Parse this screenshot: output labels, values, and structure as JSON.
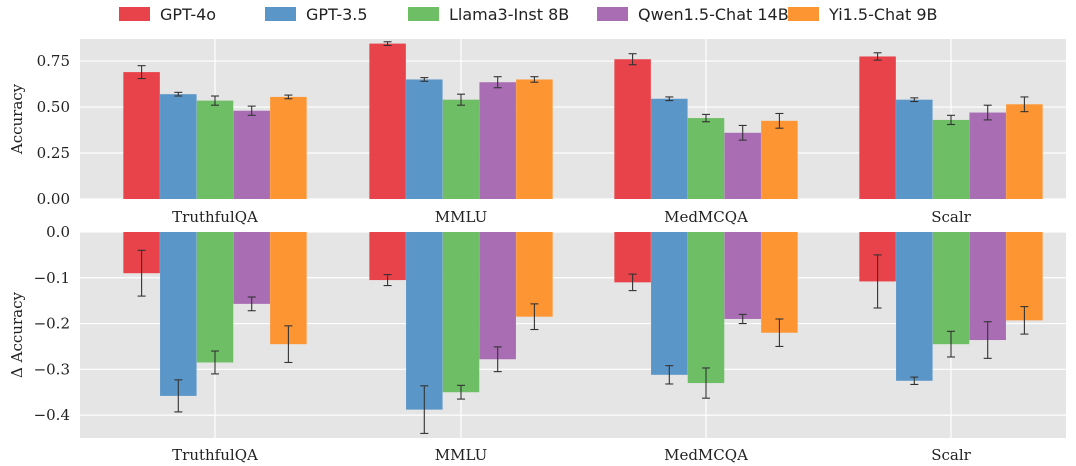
{
  "legend": [
    "GPT-4o",
    "GPT-3.5",
    "Llama3-Inst 8B",
    "Qwen1.5-Chat 14B",
    "Yi1.5-Chat 9B"
  ],
  "colors": [
    "#e8434a",
    "#5b96c8",
    "#6dbe64",
    "#a96db4",
    "#fd9532"
  ],
  "chart_data": [
    {
      "type": "bar",
      "categories": [
        "TruthfulQA",
        "MMLU",
        "MedMCQA",
        "Scalr"
      ],
      "ylabel": "Accuracy",
      "ylim": [
        0,
        0.87
      ],
      "yticks": [
        "0.00",
        "0.25",
        "0.50",
        "0.75"
      ],
      "grid": true,
      "legend_position": "top",
      "series": [
        {
          "name": "GPT-4o",
          "values": [
            0.69,
            0.845,
            0.76,
            0.775
          ],
          "errors": [
            0.035,
            0.01,
            0.03,
            0.02
          ]
        },
        {
          "name": "GPT-3.5",
          "values": [
            0.57,
            0.65,
            0.545,
            0.54
          ],
          "errors": [
            0.01,
            0.01,
            0.01,
            0.01
          ]
        },
        {
          "name": "Llama3-Inst 8B",
          "values": [
            0.535,
            0.54,
            0.44,
            0.43
          ],
          "errors": [
            0.025,
            0.03,
            0.02,
            0.025
          ]
        },
        {
          "name": "Qwen1.5-Chat 14B",
          "values": [
            0.48,
            0.635,
            0.36,
            0.47
          ],
          "errors": [
            0.025,
            0.03,
            0.04,
            0.04
          ]
        },
        {
          "name": "Yi1.5-Chat 9B",
          "values": [
            0.555,
            0.65,
            0.425,
            0.515
          ],
          "errors": [
            0.01,
            0.015,
            0.04,
            0.04
          ]
        }
      ]
    },
    {
      "type": "bar",
      "categories": [
        "TruthfulQA",
        "MMLU",
        "MedMCQA",
        "Scalr"
      ],
      "ylabel": "Δ Accuracy",
      "ylim": [
        -0.45,
        0.0
      ],
      "yticks": [
        "0.0",
        "−0.1",
        "−0.2",
        "−0.3",
        "−0.4"
      ],
      "grid": true,
      "series": [
        {
          "name": "GPT-4o",
          "values": [
            -0.09,
            -0.105,
            -0.11,
            -0.108
          ],
          "errors": [
            0.05,
            0.012,
            0.018,
            0.058
          ]
        },
        {
          "name": "GPT-3.5",
          "values": [
            -0.358,
            -0.388,
            -0.312,
            -0.325
          ],
          "errors": [
            0.035,
            0.052,
            0.02,
            0.008
          ]
        },
        {
          "name": "Llama3-Inst 8B",
          "values": [
            -0.285,
            -0.35,
            -0.33,
            -0.245
          ],
          "errors": [
            0.025,
            0.015,
            0.033,
            0.028
          ]
        },
        {
          "name": "Qwen1.5-Chat 14B",
          "values": [
            -0.157,
            -0.278,
            -0.19,
            -0.236
          ],
          "errors": [
            0.015,
            0.027,
            0.01,
            0.04
          ]
        },
        {
          "name": "Yi1.5-Chat 9B",
          "values": [
            -0.245,
            -0.185,
            -0.22,
            -0.193
          ],
          "errors": [
            0.04,
            0.028,
            0.03,
            0.03
          ]
        }
      ]
    }
  ]
}
